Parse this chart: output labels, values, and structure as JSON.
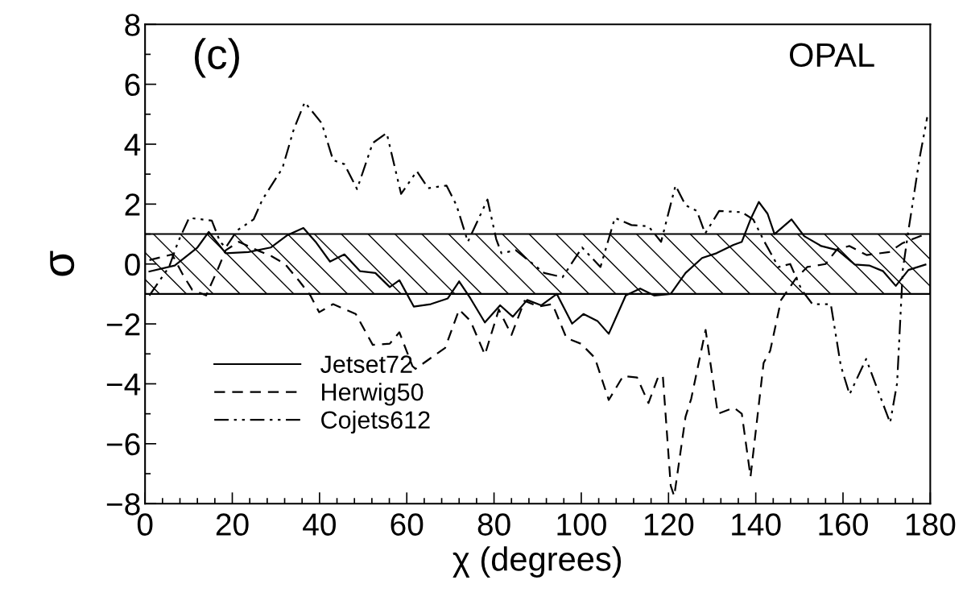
{
  "chart_data": {
    "type": "line",
    "xlabel": "χ (degrees)",
    "ylabel": "σ",
    "annotations": [
      "(c)",
      "OPAL"
    ],
    "xlim": [
      0,
      180
    ],
    "xticks": [
      0,
      20,
      40,
      60,
      80,
      100,
      120,
      140,
      160,
      180
    ],
    "ylim": [
      -8,
      8
    ],
    "yticks": [
      -8,
      -6,
      -4,
      -2,
      0,
      2,
      4,
      6,
      8
    ],
    "grid": false,
    "legend": "bottom left",
    "marker": "none",
    "bands": [
      {
        "axis": "y",
        "from": -1,
        "to": 1,
        "color": "#000000"
      }
    ],
    "series": [
      {
        "name": "Jetset72",
        "color": "#000000",
        "line_style": "solid",
        "x": [
          1,
          6.8,
          12,
          14.6,
          18.5,
          23.7,
          28.8,
          32.7,
          36.3,
          39.1,
          42.4,
          45.7,
          49.3,
          52.8,
          56.1,
          58.3,
          61.6,
          65.5,
          69.4,
          72,
          74.6,
          77.9,
          81.4,
          84.3,
          87.6,
          90.8,
          94.4,
          97.9,
          100.5,
          103.7,
          106.3,
          110.2,
          113.5,
          116.7,
          120.5,
          123.9,
          127.7,
          131,
          134.9,
          136.8,
          138.8,
          140.7,
          142.7,
          144.3,
          148.2,
          151.1,
          155,
          158.8,
          162.7,
          166,
          169.2,
          172.1,
          175,
          178.9
        ],
        "values": [
          -0.25,
          -0.05,
          0.55,
          1.07,
          0.36,
          0.4,
          0.55,
          0.97,
          1.2,
          0.74,
          0.08,
          0.32,
          -0.24,
          -0.3,
          -0.77,
          -0.54,
          -1.42,
          -1.34,
          -1.15,
          -0.58,
          -1.15,
          -1.95,
          -1.38,
          -1.76,
          -1.2,
          -1.38,
          -1.0,
          -1.99,
          -1.67,
          -1.9,
          -2.33,
          -1.05,
          -0.82,
          -1.05,
          -1.0,
          -0.3,
          0.2,
          0.36,
          0.64,
          0.74,
          1.49,
          2.07,
          1.68,
          1.0,
          1.49,
          0.93,
          0.6,
          0.46,
          -0.02,
          -0.05,
          -0.24,
          -0.73,
          -0.2,
          -0.02
        ]
      },
      {
        "name": "Herwig50",
        "color": "#000000",
        "line_style": "dashed",
        "x": [
          1,
          6.2,
          8.8,
          10.8,
          14,
          16.6,
          18.5,
          21.5,
          25.7,
          28.9,
          32.1,
          35.4,
          37.9,
          39.9,
          43.1,
          48.3,
          52.2,
          56.1,
          58.3,
          61.3,
          62,
          68.8,
          72,
          74.6,
          77.9,
          81.1,
          84,
          87,
          90.2,
          93.4,
          96.6,
          99.9,
          103.1,
          106.3,
          109.6,
          112.8,
          115.4,
          117.7,
          118.7,
          120.5,
          121.3,
          123.9,
          125.2,
          128.5,
          131.3,
          135,
          136.8,
          138.8,
          141.8,
          143.3,
          145.8,
          149.1,
          151.8,
          156,
          158.7,
          161.5,
          165.4,
          170.6,
          173.7,
          178.9
        ],
        "values": [
          0.13,
          0.32,
          -0.39,
          -0.86,
          -1.05,
          -0.2,
          0.46,
          0.74,
          0.46,
          0.27,
          0.0,
          -0.58,
          -1.05,
          -1.61,
          -1.34,
          -1.67,
          -2.7,
          -2.66,
          -2.28,
          -3.41,
          -3.5,
          -2.8,
          -1.52,
          -1.9,
          -3.03,
          -1.52,
          -2.37,
          -1.23,
          -1.42,
          -1.34,
          -2.47,
          -2.66,
          -3.13,
          -4.54,
          -3.74,
          -3.79,
          -4.64,
          -3.74,
          -3.74,
          -7.4,
          -7.75,
          -5.1,
          -4.5,
          -2.2,
          -5.0,
          -4.8,
          -5.0,
          -7.1,
          -3.3,
          -2.9,
          -1.2,
          -0.5,
          -0.1,
          0.0,
          0.5,
          0.6,
          0.3,
          0.4,
          0.7,
          1.0
        ]
      },
      {
        "name": "Cojets612",
        "color": "#000000",
        "line_style": "dashdot",
        "x": [
          1,
          5.5,
          7.6,
          10.1,
          15.3,
          17.2,
          18.5,
          21.1,
          24.9,
          26.9,
          31.5,
          34.1,
          36.6,
          40.5,
          43.1,
          45.7,
          48.6,
          52.2,
          55.4,
          58.7,
          62.3,
          64.9,
          69.1,
          71.4,
          74,
          78.5,
          80.5,
          81.7,
          85,
          91.5,
          95.7,
          100.2,
          104.4,
          107.7,
          111.5,
          115.4,
          118.3,
          121.6,
          123.9,
          126.5,
          128.4,
          131.6,
          136.8,
          139.4,
          142,
          145.2,
          147.9,
          150.5,
          153,
          157.2,
          159.5,
          161.5,
          165.3,
          168.6,
          170.8,
          172.4,
          173.7,
          175,
          177.6,
          179.3
        ],
        "values": [
          -1.05,
          -0.1,
          0.75,
          1.54,
          1.45,
          0.74,
          0.55,
          1.12,
          1.49,
          2.15,
          3.2,
          4.5,
          5.4,
          4.7,
          3.47,
          3.33,
          2.5,
          4.04,
          4.37,
          2.34,
          3.1,
          2.53,
          2.62,
          1.96,
          0.74,
          2.15,
          0.83,
          0.36,
          0.46,
          -0.3,
          -0.44,
          0.55,
          -0.1,
          1.54,
          1.3,
          1.26,
          0.74,
          2.62,
          1.96,
          1.77,
          1.02,
          1.77,
          1.73,
          1.49,
          0.74,
          -0.1,
          0.0,
          -0.86,
          -1.34,
          -1.34,
          -3.4,
          -4.35,
          -3.17,
          -4.45,
          -5.3,
          -3.98,
          -0.2,
          1.12,
          3.57,
          4.9
        ]
      }
    ]
  }
}
